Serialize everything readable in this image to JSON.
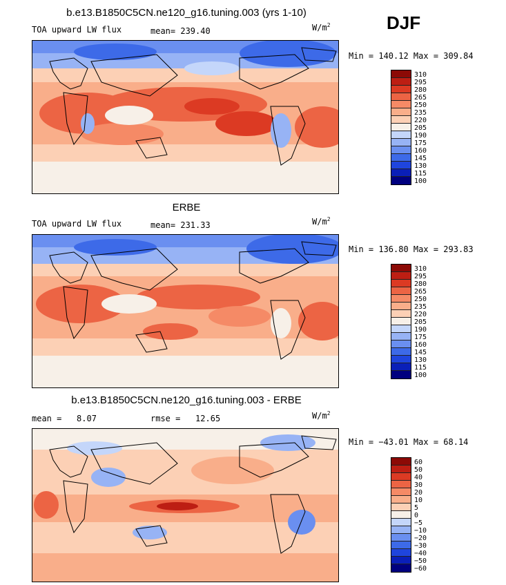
{
  "season": "DJF",
  "units": {
    "base": "W/m",
    "exp": "2"
  },
  "color_palette": {
    "flux": [
      "#00007f",
      "#0a1fb8",
      "#1f45dd",
      "#3d6ae8",
      "#6a8ff0",
      "#97b3f5",
      "#c4d6fa",
      "#f7f0e8",
      "#fcd0b5",
      "#f9ae8a",
      "#f58a66",
      "#ec6444",
      "#dc3a23",
      "#bd1e13",
      "#8c0a06"
    ],
    "diff": [
      "#00007f",
      "#0a1fb8",
      "#1f45dd",
      "#3d6ae8",
      "#6a8ff0",
      "#97b3f5",
      "#c4d6fa",
      "#f7f0e8",
      "#fcd0b5",
      "#f9ae8a",
      "#f58a66",
      "#ec6444",
      "#dc3a23",
      "#bd1e13",
      "#8c0a06"
    ]
  },
  "panels": [
    {
      "title": "b.e13.B1850C5CN.ne120_g16.tuning.003 (yrs 1-10)",
      "variable": "TOA upward LW flux",
      "stat1_label": "mean=",
      "stat1_value": "239.40",
      "stat2_label": "",
      "stat2_value": "",
      "min_text": "Min = 140.12 Max = 309.84",
      "colorbar_levels": [
        "310",
        "295",
        "280",
        "265",
        "250",
        "235",
        "220",
        "205",
        "190",
        "175",
        "160",
        "145",
        "130",
        "115",
        "100"
      ]
    },
    {
      "title": "ERBE",
      "variable": "TOA upward LW flux",
      "stat1_label": "mean=",
      "stat1_value": "231.33",
      "stat2_label": "",
      "stat2_value": "",
      "min_text": "Min = 136.80 Max = 293.83",
      "colorbar_levels": [
        "310",
        "295",
        "280",
        "265",
        "250",
        "235",
        "220",
        "205",
        "190",
        "175",
        "160",
        "145",
        "130",
        "115",
        "100"
      ]
    },
    {
      "title": "b.e13.B1850C5CN.ne120_g16.tuning.003 - ERBE",
      "variable": "",
      "stat1_label": "mean =",
      "stat1_value": "8.07",
      "stat2_label": "rmse =",
      "stat2_value": "12.65",
      "min_text": "Min = −43.01 Max =  68.14",
      "colorbar_levels": [
        "60",
        "50",
        "40",
        "30",
        "20",
        "10",
        "5",
        "0",
        "−5",
        "−10",
        "−20",
        "−30",
        "−40",
        "−50",
        "−60"
      ]
    }
  ]
}
